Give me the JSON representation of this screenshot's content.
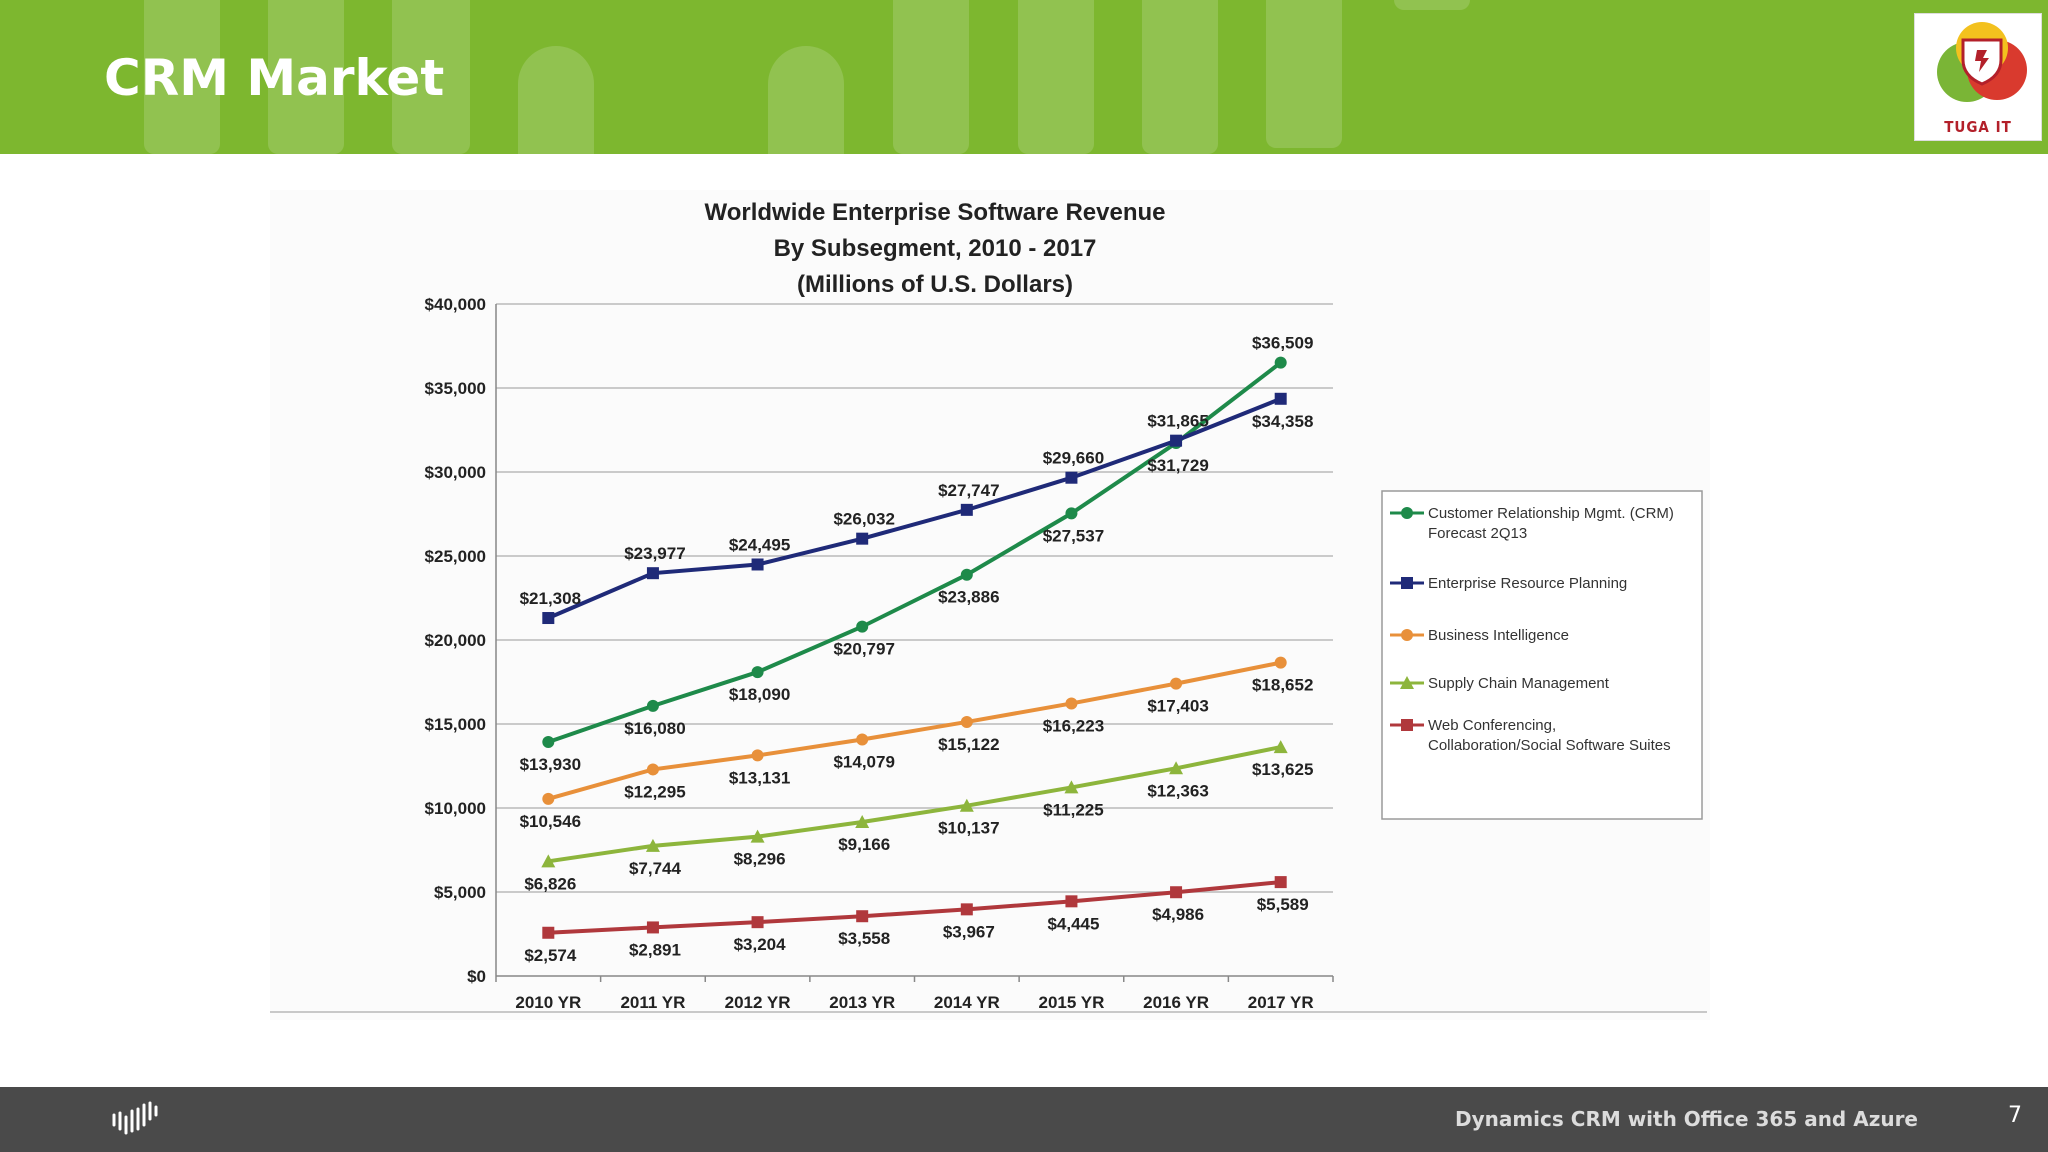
{
  "slide": {
    "title": "CRM Market",
    "logo_text": "TUGA IT",
    "footer_text": "Dynamics CRM with Office 365 and Azure",
    "page_number": "7",
    "header_color": "#7db72f",
    "footer_color": "#4a4a4a"
  },
  "chart_data": {
    "type": "line",
    "title": [
      "Worldwide Enterprise Software Revenue",
      "By Subsegment, 2010 - 2017",
      "(Millions of U.S. Dollars)"
    ],
    "xlabel": "",
    "ylabel": "",
    "categories": [
      "2010 YR",
      "2011 YR",
      "2012 YR",
      "2013 YR",
      "2014 YR",
      "2015 YR",
      "2016 YR",
      "2017 YR"
    ],
    "ylim": [
      0,
      40000
    ],
    "yticks": [
      "$0",
      "$5,000",
      "$10,000",
      "$15,000",
      "$20,000",
      "$25,000",
      "$30,000",
      "$35,000",
      "$40,000"
    ],
    "grid": "horizontal",
    "legend_position": "right",
    "series": [
      {
        "name": "Customer Relationship Mgmt. (CRM) Forecast 2Q13",
        "legend_lines": [
          "Customer Relationship Mgmt. (CRM)",
          "Forecast  2Q13"
        ],
        "color": "#1e8a4a",
        "marker": "circle",
        "values": [
          13930,
          16080,
          18090,
          20797,
          23886,
          27537,
          31729,
          36509
        ],
        "labels": [
          "$13,930",
          "$16,080",
          "$18,090",
          "$20,797",
          "$23,886",
          "$27,537",
          "$31,729",
          "$36,509"
        ]
      },
      {
        "name": "Enterprise Resource Planning",
        "legend_lines": [
          "Enterprise Resource Planning"
        ],
        "color": "#1f2a78",
        "marker": "square",
        "values": [
          21308,
          23977,
          24495,
          26032,
          27747,
          29660,
          31865,
          34358
        ],
        "labels": [
          "$21,308",
          "$23,977",
          "$24,495",
          "$26,032",
          "$27,747",
          "$29,660",
          "$31,865",
          "$34,358"
        ]
      },
      {
        "name": "Business Intelligence",
        "legend_lines": [
          "Business Intelligence"
        ],
        "color": "#e8903a",
        "marker": "circle",
        "values": [
          10546,
          12295,
          13131,
          14079,
          15122,
          16223,
          17403,
          18652
        ],
        "labels": [
          "$10,546",
          "$12,295",
          "$13,131",
          "$14,079",
          "$15,122",
          "$16,223",
          "$17,403",
          "$18,652"
        ]
      },
      {
        "name": "Supply Chain Management",
        "legend_lines": [
          "Supply Chain Management"
        ],
        "color": "#8db53c",
        "marker": "triangle",
        "values": [
          6826,
          7744,
          8296,
          9166,
          10137,
          11225,
          12363,
          13625
        ],
        "labels": [
          "$6,826",
          "$7,744",
          "$8,296",
          "$9,166",
          "$10,137",
          "$11,225",
          "$12,363",
          "$13,625"
        ]
      },
      {
        "name": "Web Conferencing, Collaboration/Social Software Suites",
        "legend_lines": [
          "Web Conferencing,",
          "Collaboration/Social Software Suites"
        ],
        "color": "#b0383c",
        "marker": "square",
        "values": [
          2574,
          2891,
          3204,
          3558,
          3967,
          4445,
          4986,
          5589
        ],
        "labels": [
          "$2,574",
          "$2,891",
          "$3,204",
          "$3,558",
          "$3,967",
          "$4,445",
          "$4,986",
          "$5,589"
        ]
      }
    ]
  }
}
